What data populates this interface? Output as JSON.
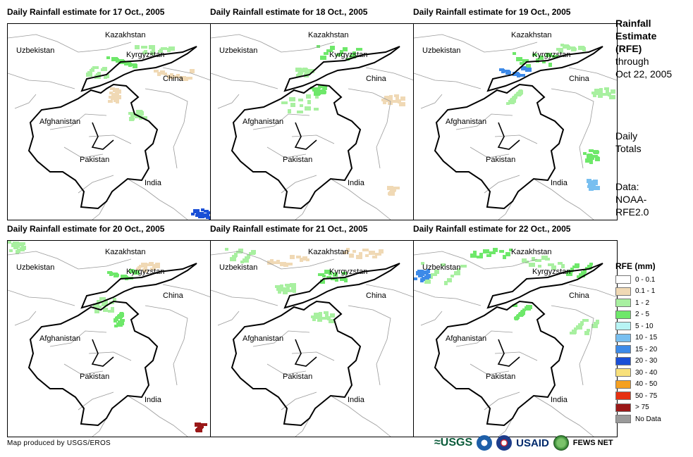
{
  "panels": [
    {
      "title": "Daily Rainfall estimate for 17 Oct., 2005"
    },
    {
      "title": "Daily Rainfall estimate for 18 Oct., 2005"
    },
    {
      "title": "Daily Rainfall estimate for 19 Oct., 2005"
    },
    {
      "title": "Daily Rainfall estimate for 20 Oct., 2005"
    },
    {
      "title": "Daily Rainfall estimate for 21 Oct., 2005"
    },
    {
      "title": "Daily Rainfall estimate for 22 Oct., 2005"
    }
  ],
  "countries": {
    "kazakhstan": "Kazakhstan",
    "uzbekistan": "Uzbekistan",
    "kyrgyzstan": "Kyrgyzstan",
    "china": "China",
    "afghanistan": "Afghanistan",
    "pakistan": "Pakistan",
    "india": "India"
  },
  "side": {
    "title_line1": "Rainfall",
    "title_line2": "Estimate",
    "title_line3": "(RFE)",
    "through": "through",
    "date": "Oct 22, 2005",
    "daily1": "Daily",
    "daily2": "Totals",
    "data1": "Data:",
    "data2": "NOAA-",
    "data3": "RFE2.0"
  },
  "legend": {
    "title": "RFE (mm)",
    "items": [
      {
        "label": "0 - 0.1",
        "color": "#ffffff"
      },
      {
        "label": "0.1 - 1",
        "color": "#f0d9b5"
      },
      {
        "label": "1 - 2",
        "color": "#a8f0a0"
      },
      {
        "label": "2 - 5",
        "color": "#6ee86a"
      },
      {
        "label": "5 - 10",
        "color": "#b8f4f4"
      },
      {
        "label": "10 - 15",
        "color": "#78bff0"
      },
      {
        "label": "15 - 20",
        "color": "#3d8ae8"
      },
      {
        "label": "20 - 30",
        "color": "#1a4fd6"
      },
      {
        "label": "30 - 40",
        "color": "#f8e07a"
      },
      {
        "label": "40 - 50",
        "color": "#f5a020"
      },
      {
        "label": "50 - 75",
        "color": "#e63010"
      },
      {
        "label": "> 75",
        "color": "#9a1818"
      },
      {
        "label": "No Data",
        "color": "#9a9a9a"
      }
    ]
  },
  "footer": {
    "credit": "Map produced by USGS/EROS",
    "usgs": "≈USGS",
    "usaid": "USAID",
    "fews": "FEWS NET"
  }
}
